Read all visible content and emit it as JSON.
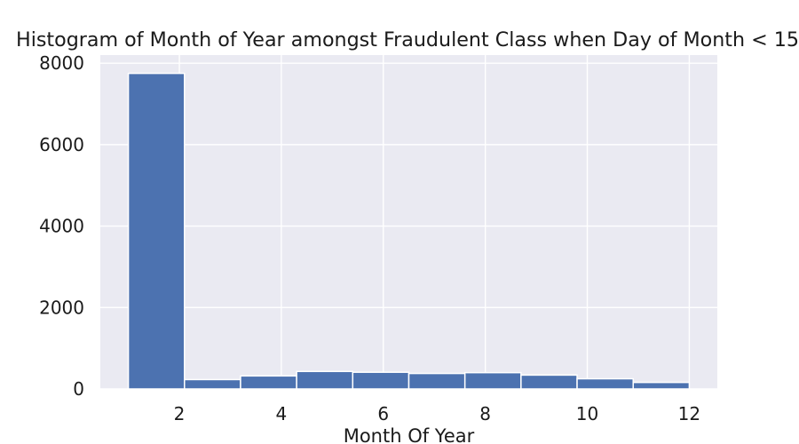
{
  "chart_data": {
    "type": "bar",
    "title": "Histogram of Month of Year amongst Fraudulent Class when Day of Month < 15",
    "xlabel": "Month Of Year",
    "ylabel": "",
    "xlim": [
      0.45,
      12.55
    ],
    "ylim": [
      0,
      8200
    ],
    "xticks": [
      2,
      4,
      6,
      8,
      10,
      12
    ],
    "yticks": [
      0,
      2000,
      4000,
      6000,
      8000
    ],
    "grid": true,
    "bins": [
      {
        "x0": 1.0,
        "x1": 2.1,
        "value": 7750
      },
      {
        "x0": 2.1,
        "x1": 3.2,
        "value": 230
      },
      {
        "x0": 3.2,
        "x1": 4.3,
        "value": 320
      },
      {
        "x0": 4.3,
        "x1": 5.4,
        "value": 430
      },
      {
        "x0": 5.4,
        "x1": 6.5,
        "value": 410
      },
      {
        "x0": 6.5,
        "x1": 7.6,
        "value": 380
      },
      {
        "x0": 7.6,
        "x1": 8.7,
        "value": 400
      },
      {
        "x0": 8.7,
        "x1": 9.8,
        "value": 340
      },
      {
        "x0": 9.8,
        "x1": 10.9,
        "value": 250
      },
      {
        "x0": 10.9,
        "x1": 12.0,
        "value": 160
      }
    ],
    "colors": {
      "bar": "#4c72b0",
      "plot_bg": "#eaeaf2",
      "grid": "#ffffff"
    }
  }
}
